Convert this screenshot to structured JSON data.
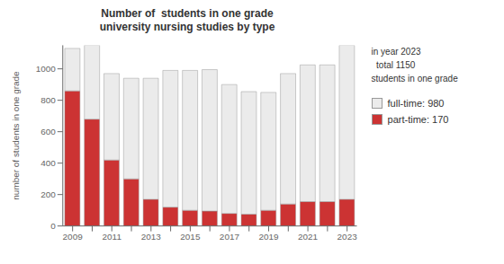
{
  "chart_data": {
    "type": "bar",
    "stacked": true,
    "title": "Number of  students in one grade\nuniversity nursing studies by type",
    "ylabel": "number of students in one grade",
    "categories": [
      "2009",
      null,
      "2011",
      null,
      "2013",
      null,
      "2015",
      null,
      "2017",
      null,
      "2019",
      null,
      "2021",
      null,
      "2023"
    ],
    "series": [
      {
        "name": "part-time: 170",
        "color": "#cc3333",
        "values": [
          860,
          680,
          420,
          300,
          170,
          120,
          100,
          95,
          80,
          75,
          100,
          140,
          155,
          155,
          170
        ]
      },
      {
        "name": "full-time: 980",
        "color": "#ebebeb",
        "values": [
          270,
          470,
          550,
          640,
          770,
          870,
          890,
          900,
          820,
          780,
          750,
          830,
          870,
          870,
          980
        ]
      }
    ],
    "ylim": [
      0,
      1150
    ],
    "yticks": [
      0,
      200,
      400,
      600,
      800,
      1000
    ],
    "grid": false,
    "legend": "right",
    "annotations": [
      "in year 2023\n  total 1150\nstudents in one grade"
    ]
  }
}
